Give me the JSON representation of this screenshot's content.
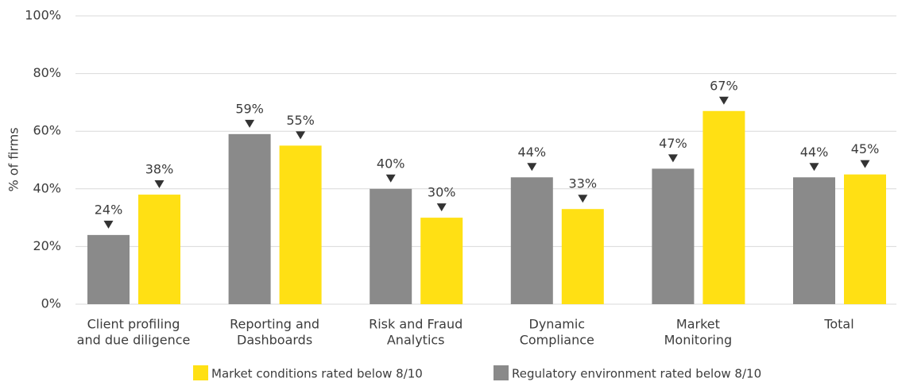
{
  "chart_data": {
    "type": "bar",
    "ylabel": "% of firms",
    "categories": [
      [
        "Client profiling",
        "and due diligence"
      ],
      [
        "Reporting and",
        "Dashboards"
      ],
      [
        "Risk and Fraud",
        "Analytics"
      ],
      [
        "Dynamic",
        "Compliance"
      ],
      [
        "Market",
        "Monitoring"
      ],
      [
        "Total"
      ]
    ],
    "series": [
      {
        "name": "Regulatory environment rated below 8/10",
        "color": "#8a8a8a",
        "values": [
          24,
          59,
          40,
          44,
          47,
          44
        ],
        "value_labels": [
          "24%",
          "59%",
          "40%",
          "44%",
          "47%",
          "44%"
        ]
      },
      {
        "name": "Market conditions rated below 8/10",
        "color": "#ffe014",
        "values": [
          38,
          55,
          30,
          33,
          67,
          45
        ],
        "value_labels": [
          "38%",
          "55%",
          "30%",
          "33%",
          "67%",
          "45%"
        ]
      }
    ],
    "ylim": [
      0,
      100
    ],
    "yticks": [
      {
        "value": 0,
        "label": "0%"
      },
      {
        "value": 20,
        "label": "20%"
      },
      {
        "value": 40,
        "label": "40%"
      },
      {
        "value": 60,
        "label": "60%"
      },
      {
        "value": 80,
        "label": "80%"
      },
      {
        "value": 100,
        "label": "100%"
      }
    ],
    "grid": true,
    "legend": "bottom"
  }
}
